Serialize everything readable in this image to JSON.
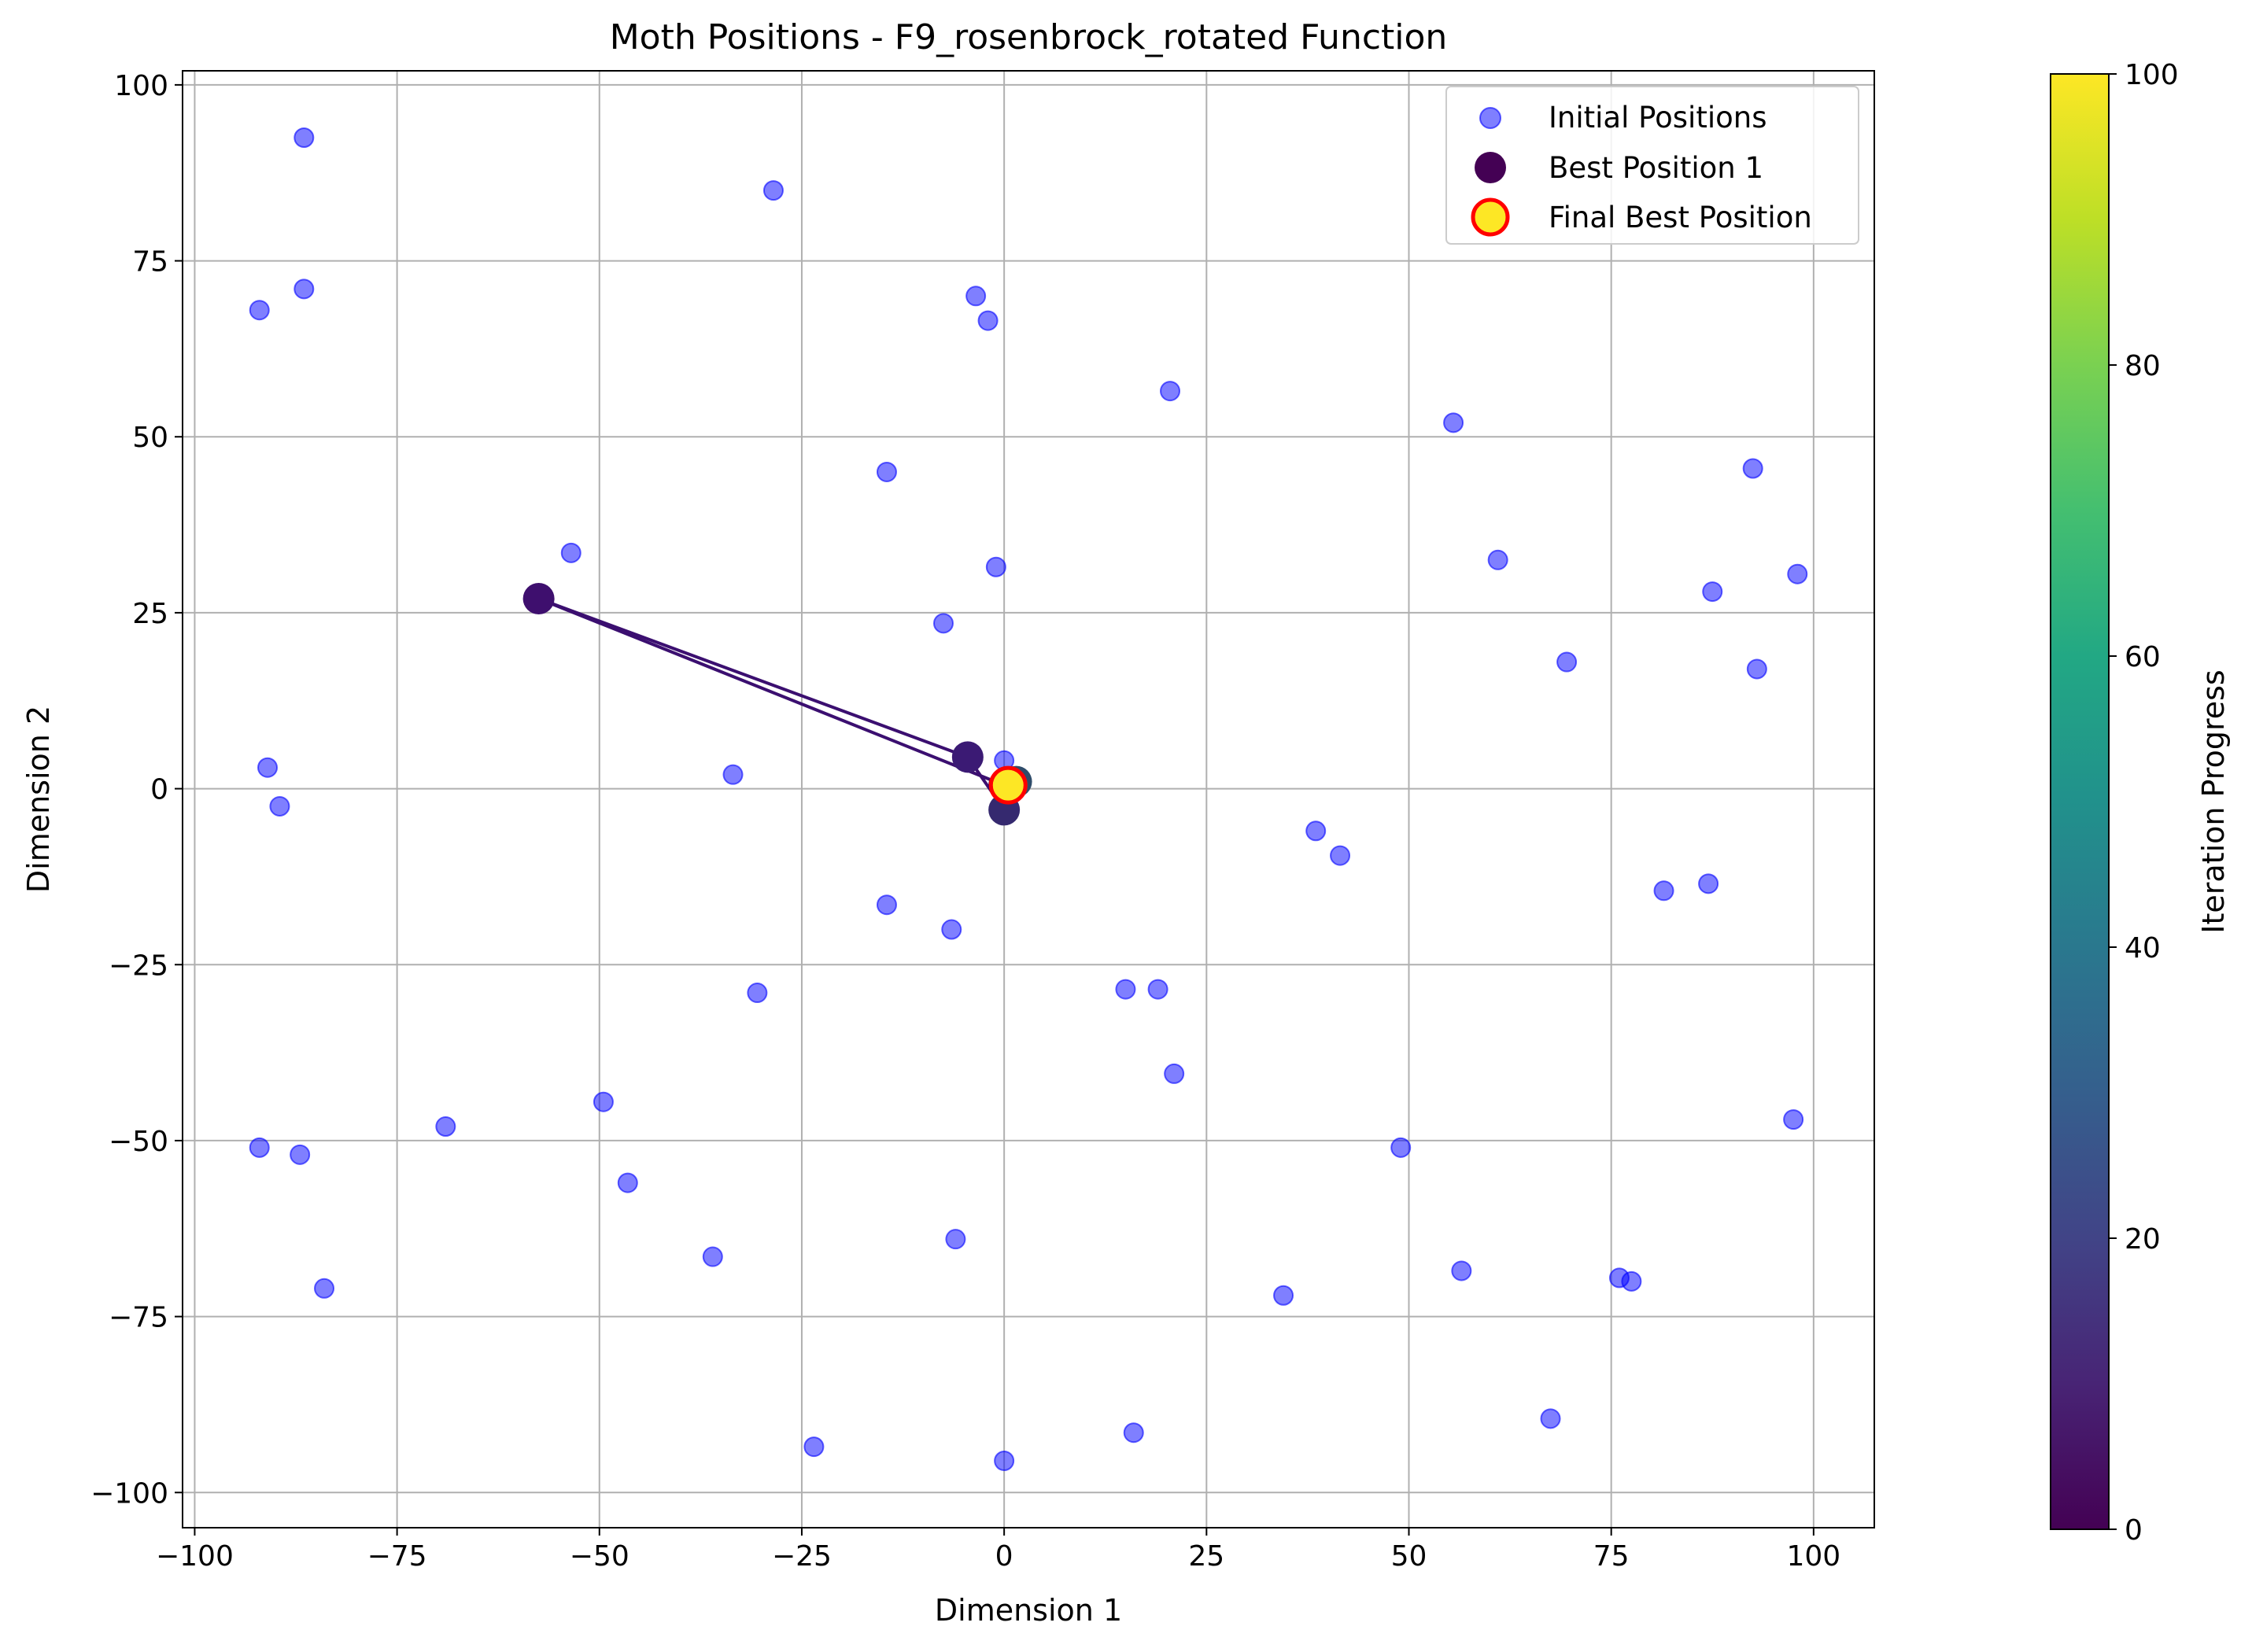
{
  "colors": {
    "initial": "#0000ff",
    "path": "#3b0f70",
    "final_fill": "#fde725",
    "final_edge": "#ff0000",
    "grid": "#b0b0b0"
  },
  "chart_data": {
    "type": "scatter",
    "title": "Moth Positions - F9_rosenbrock_rotated Function",
    "xlabel": "Dimension 1",
    "ylabel": "Dimension 2",
    "xlim": [
      -101.5,
      107.5
    ],
    "ylim": [
      -105,
      102
    ],
    "xticks": [
      -100,
      -75,
      -50,
      -25,
      0,
      25,
      50,
      75,
      100
    ],
    "yticks": [
      -100,
      -75,
      -50,
      -25,
      0,
      25,
      50,
      75,
      100
    ],
    "xtick_labels": [
      "−100",
      "−75",
      "−50",
      "−25",
      "0",
      "25",
      "50",
      "75",
      "100"
    ],
    "ytick_labels": [
      "−100",
      "−75",
      "−50",
      "−25",
      "0",
      "25",
      "50",
      "75",
      "100"
    ],
    "grid": true,
    "legend": {
      "position": "upper right",
      "entries": [
        "Initial Positions",
        "Best Position 1",
        "Final Best Position"
      ]
    },
    "colorbar": {
      "label": "Iteration Progress",
      "colormap": "viridis",
      "range": [
        0,
        100
      ],
      "ticks": [
        0,
        20,
        40,
        60,
        80,
        100
      ],
      "tick_labels": [
        "0",
        "20",
        "40",
        "60",
        "80",
        "100"
      ]
    },
    "initial_positions": [
      [
        -86.5,
        92.5
      ],
      [
        -28.5,
        85
      ],
      [
        -92,
        68
      ],
      [
        -86.5,
        71
      ],
      [
        -3.5,
        70
      ],
      [
        -2,
        66.5
      ],
      [
        20.5,
        56.5
      ],
      [
        -14.5,
        45
      ],
      [
        55.5,
        52
      ],
      [
        92.5,
        45.5
      ],
      [
        -53.5,
        33.5
      ],
      [
        -1,
        31.5
      ],
      [
        61,
        32.5
      ],
      [
        98,
        30.5
      ],
      [
        87.5,
        28
      ],
      [
        -7.5,
        23.5
      ],
      [
        69.5,
        18
      ],
      [
        93,
        17
      ],
      [
        -91,
        3
      ],
      [
        -89.5,
        -2.5
      ],
      [
        -33.5,
        2
      ],
      [
        0,
        4
      ],
      [
        38.5,
        -6
      ],
      [
        41.5,
        -9.5
      ],
      [
        81.5,
        -14.5
      ],
      [
        87,
        -13.5
      ],
      [
        -14.5,
        -16.5
      ],
      [
        -6.5,
        -20
      ],
      [
        -30.5,
        -29
      ],
      [
        15,
        -28.5
      ],
      [
        19,
        -28.5
      ],
      [
        21,
        -40.5
      ],
      [
        -49.5,
        -44.5
      ],
      [
        97.5,
        -47
      ],
      [
        -69,
        -48
      ],
      [
        -92,
        -51
      ],
      [
        -87,
        -52
      ],
      [
        -46.5,
        -56
      ],
      [
        49,
        -51
      ],
      [
        -6,
        -64
      ],
      [
        -36,
        -66.5
      ],
      [
        56.5,
        -68.5
      ],
      [
        76,
        -69.5
      ],
      [
        77.5,
        -70
      ],
      [
        -84,
        -71
      ],
      [
        34.5,
        -72
      ],
      [
        67.5,
        -89.5
      ],
      [
        16,
        -91.5
      ],
      [
        -23.5,
        -93.5
      ],
      [
        0,
        -95.5
      ]
    ],
    "best_path": [
      [
        0,
        0.5
      ],
      [
        -57.5,
        27
      ],
      [
        -4.5,
        4.5
      ],
      [
        0,
        -3
      ],
      [
        0.5,
        0
      ],
      [
        1.5,
        1
      ],
      [
        1,
        0.5
      ],
      [
        0.5,
        0.5
      ]
    ],
    "final_best": [
      0.5,
      0.5
    ]
  }
}
